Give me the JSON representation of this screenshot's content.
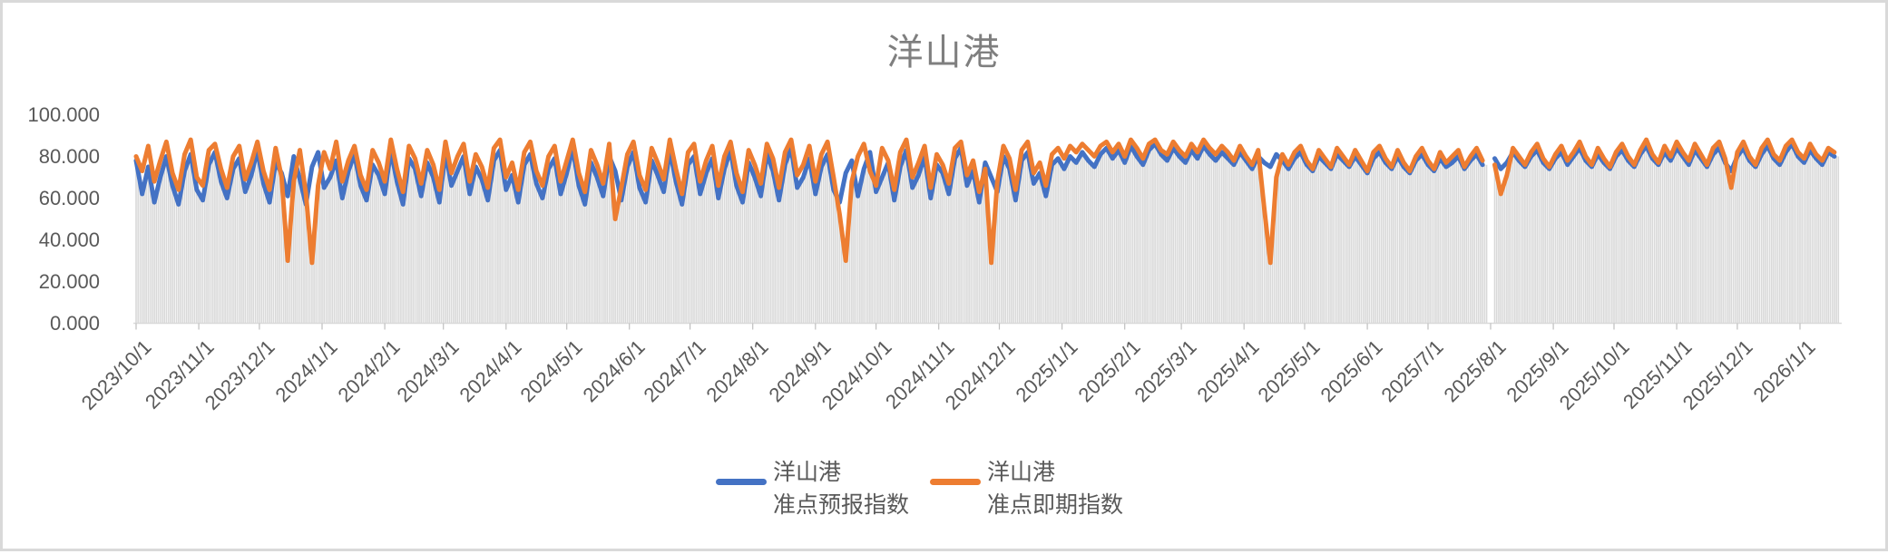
{
  "page": {
    "border_color": "#d9d9d9",
    "background": "#ffffff"
  },
  "chart": {
    "title": "洋山港",
    "title_color": "#7f7f7f",
    "axis_text_color": "#595959",
    "axis_line_color": "#d9d9d9",
    "tick_color": "#bfbfbf",
    "legend": [
      {
        "label_line1": "洋山港",
        "label_line2": "准点预报指数",
        "color": "#4472C4"
      },
      {
        "label_line1": "洋山港",
        "label_line2": "准点即期指数",
        "color": "#ED7D31"
      }
    ]
  },
  "chart_data": {
    "type": "line",
    "title": "洋山港",
    "xlabel": "",
    "ylabel": "",
    "ylim": [
      0,
      100
    ],
    "grid": false,
    "legend_position": "bottom",
    "y_ticks": [
      "100.000",
      "80.000",
      "60.000",
      "40.000",
      "20.000",
      "0.000"
    ],
    "y_tick_values": [
      100,
      80,
      60,
      40,
      20,
      0
    ],
    "x_start_date": "2023/10/1",
    "x_end_date": "2026/1/20",
    "sample_interval_days": 3,
    "x_tick_labels": [
      "2023/10/1",
      "2023/11/1",
      "2023/12/1",
      "2024/1/1",
      "2024/2/1",
      "2024/3/1",
      "2024/4/1",
      "2024/5/1",
      "2024/6/1",
      "2024/7/1",
      "2024/8/1",
      "2024/9/1",
      "2024/10/1",
      "2024/11/1",
      "2024/12/1",
      "2025/1/1",
      "2025/2/1",
      "2025/3/1",
      "2025/4/1",
      "2025/5/1",
      "2025/6/1",
      "2025/7/1",
      "2025/8/1",
      "2025/9/1",
      "2025/10/1",
      "2025/11/1",
      "2025/12/1",
      "2026/1/1"
    ],
    "x_tick_day_offsets": [
      0,
      31,
      61,
      92,
      123,
      152,
      183,
      213,
      244,
      274,
      305,
      336,
      366,
      397,
      427,
      458,
      489,
      517,
      548,
      578,
      609,
      639,
      670,
      701,
      731,
      762,
      792,
      823
    ],
    "background_bars": {
      "color": "#d9d9d9",
      "derived": "min of the two series per sample"
    },
    "notes": "Daily index series sampled every 3 days; null = missing data gap around 2025/8/1. Deep spot-index drops near 2023/12/15, 2023/12/28, 2024/9/16, 2024/11/27, 2025/4/15.",
    "series": [
      {
        "name": "洋山港准点预报指数",
        "color": "#4472C4",
        "values": [
          78,
          62,
          75,
          58,
          70,
          80,
          66,
          57,
          73,
          81,
          64,
          59,
          76,
          82,
          68,
          60,
          74,
          79,
          63,
          71,
          83,
          67,
          58,
          77,
          72,
          61,
          80,
          69,
          57,
          75,
          82,
          65,
          70,
          78,
          60,
          73,
          81,
          66,
          59,
          76,
          71,
          62,
          83,
          68,
          57,
          79,
          74,
          61,
          77,
          70,
          58,
          82,
          66,
          73,
          80,
          62,
          75,
          69,
          59,
          78,
          83,
          64,
          71,
          58,
          76,
          81,
          67,
          60,
          74,
          79,
          62,
          72,
          84,
          66,
          57,
          77,
          70,
          61,
          80,
          73,
          59,
          75,
          82,
          65,
          58,
          78,
          71,
          63,
          83,
          68,
          57,
          76,
          80,
          62,
          72,
          79,
          60,
          74,
          83,
          66,
          58,
          77,
          70,
          61,
          81,
          73,
          59,
          76,
          84,
          65,
          70,
          79,
          62,
          75,
          81,
          64,
          58,
          72,
          78,
          61,
          74,
          82,
          63,
          70,
          77,
          59,
          75,
          83,
          65,
          71,
          80,
          60,
          76,
          72,
          62,
          79,
          84,
          66,
          73,
          58,
          77,
          70,
          63,
          80,
          74,
          59,
          78,
          82,
          67,
          72,
          61,
          76,
          79,
          74,
          80,
          77,
          82,
          78,
          75,
          81,
          84,
          79,
          83,
          77,
          85,
          80,
          76,
          83,
          86,
          81,
          78,
          84,
          80,
          77,
          83,
          79,
          85,
          81,
          78,
          82,
          79,
          76,
          82,
          78,
          74,
          80,
          77,
          75,
          81,
          78,
          74,
          79,
          82,
          76,
          73,
          80,
          77,
          74,
          81,
          78,
          75,
          80,
          76,
          72,
          79,
          82,
          77,
          74,
          80,
          75,
          72,
          78,
          81,
          76,
          73,
          79,
          75,
          77,
          80,
          74,
          78,
          81,
          76,
          null,
          79,
          74,
          77,
          82,
          78,
          75,
          80,
          83,
          77,
          74,
          79,
          82,
          76,
          80,
          84,
          78,
          75,
          81,
          77,
          74,
          80,
          83,
          78,
          75,
          81,
          85,
          79,
          76,
          82,
          78,
          84,
          80,
          76,
          83,
          79,
          75,
          81,
          84,
          77,
          73,
          80,
          84,
          78,
          75,
          81,
          85,
          79,
          76,
          82,
          86,
          80,
          77,
          83,
          79,
          76,
          82,
          80
        ]
      },
      {
        "name": "洋山港准点即期指数",
        "color": "#ED7D31",
        "values": [
          80,
          73,
          85,
          68,
          78,
          87,
          72,
          64,
          81,
          88,
          70,
          66,
          83,
          86,
          74,
          65,
          80,
          85,
          69,
          77,
          87,
          73,
          64,
          84,
          70,
          30,
          68,
          83,
          62,
          29,
          66,
          82,
          74,
          87,
          68,
          78,
          85,
          71,
          64,
          83,
          77,
          68,
          88,
          74,
          63,
          85,
          79,
          67,
          83,
          76,
          64,
          87,
          72,
          80,
          86,
          68,
          81,
          75,
          65,
          84,
          88,
          70,
          77,
          64,
          82,
          87,
          73,
          66,
          80,
          85,
          68,
          78,
          88,
          72,
          63,
          83,
          76,
          67,
          86,
          50,
          65,
          81,
          87,
          71,
          64,
          84,
          77,
          69,
          88,
          74,
          62,
          82,
          86,
          68,
          78,
          85,
          66,
          80,
          87,
          72,
          63,
          83,
          76,
          67,
          86,
          79,
          65,
          82,
          88,
          71,
          76,
          85,
          68,
          81,
          87,
          70,
          52,
          30,
          68,
          80,
          86,
          73,
          66,
          84,
          78,
          64,
          82,
          88,
          70,
          77,
          85,
          65,
          81,
          76,
          67,
          84,
          87,
          71,
          78,
          63,
          74,
          29,
          68,
          85,
          79,
          64,
          83,
          87,
          72,
          77,
          66,
          81,
          84,
          79,
          85,
          82,
          86,
          83,
          80,
          85,
          87,
          82,
          86,
          80,
          88,
          84,
          79,
          86,
          88,
          83,
          81,
          87,
          83,
          80,
          86,
          82,
          88,
          84,
          81,
          85,
          82,
          78,
          85,
          80,
          76,
          83,
          55,
          29,
          70,
          81,
          76,
          82,
          85,
          78,
          74,
          83,
          79,
          75,
          84,
          80,
          76,
          83,
          78,
          73,
          82,
          85,
          79,
          75,
          83,
          77,
          73,
          80,
          84,
          78,
          74,
          82,
          77,
          80,
          83,
          75,
          80,
          84,
          78,
          null,
          76,
          62,
          71,
          84,
          80,
          76,
          82,
          86,
          79,
          75,
          81,
          85,
          78,
          82,
          87,
          80,
          76,
          84,
          79,
          75,
          82,
          86,
          80,
          76,
          83,
          88,
          81,
          77,
          85,
          80,
          87,
          82,
          78,
          86,
          81,
          76,
          84,
          87,
          79,
          65,
          82,
          87,
          80,
          76,
          84,
          88,
          81,
          78,
          85,
          88,
          82,
          79,
          86,
          81,
          78,
          84,
          82
        ]
      }
    ]
  }
}
